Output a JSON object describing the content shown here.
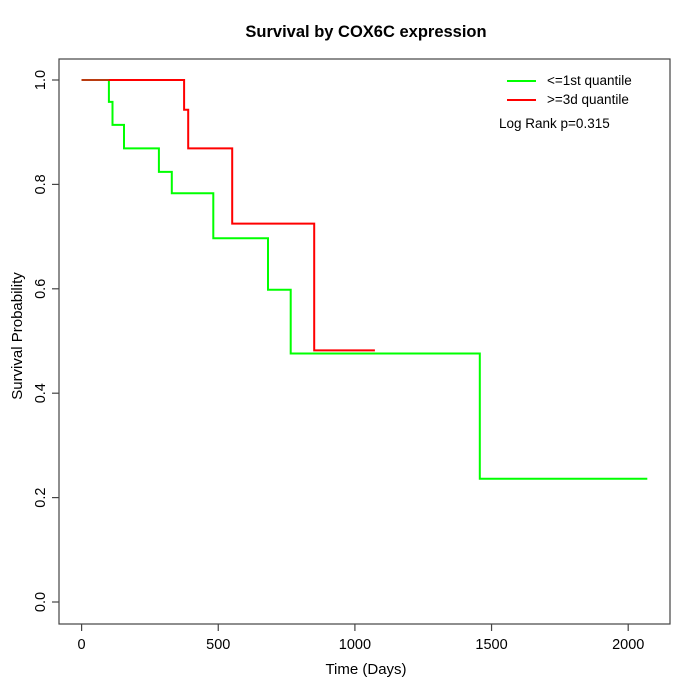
{
  "chart_data": {
    "type": "line",
    "subtype": "kaplan-meier-step",
    "title": "Survival by COX6C expression",
    "xlabel": "Time (Days)",
    "ylabel": "Survival Probability",
    "x_ticks": [
      "0",
      "500",
      "1000",
      "1500",
      "2000"
    ],
    "y_ticks": [
      "0.0",
      "0.2",
      "0.4",
      "0.6",
      "0.8",
      "1.0"
    ],
    "xlim": [
      0,
      2070
    ],
    "ylim": [
      0,
      1
    ],
    "grid": "off",
    "legend_position": "top-right",
    "annotation": "Log Rank p=0.315",
    "overlap_color": "#b93b10",
    "axis_color": "#444444",
    "series": [
      {
        "key": "le-1st-quantile",
        "name": "<=1st quantile",
        "color": "#00ff00",
        "step_points": [
          [
            0,
            1.0
          ],
          [
            100,
            0.958
          ],
          [
            113,
            0.914
          ],
          [
            155,
            0.869
          ],
          [
            283,
            0.824
          ],
          [
            330,
            0.783
          ],
          [
            482,
            0.697
          ],
          [
            682,
            0.598
          ],
          [
            765,
            0.476
          ],
          [
            1457,
            0.236
          ]
        ],
        "end_time": 2070
      },
      {
        "key": "ge-3d-quantile",
        "name": ">=3d quantile",
        "color": "#ff0000",
        "step_points": [
          [
            0,
            1.0
          ],
          [
            375,
            0.943
          ],
          [
            390,
            0.869
          ],
          [
            551,
            0.725
          ],
          [
            851,
            0.482
          ]
        ],
        "end_time": 1073
      }
    ]
  }
}
